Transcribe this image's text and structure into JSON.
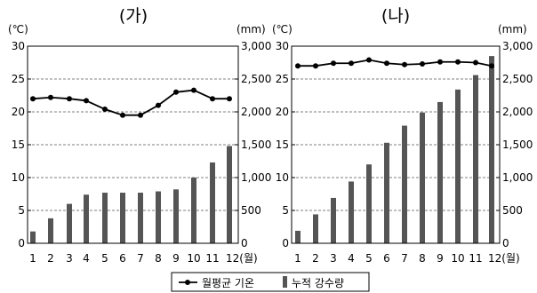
{
  "chart_data": [
    {
      "type": "bar+line",
      "title": "(가)",
      "left_axis_unit": "(℃)",
      "right_axis_unit": "(mm)",
      "categories": [
        "1",
        "2",
        "3",
        "4",
        "5",
        "6",
        "7",
        "8",
        "9",
        "10",
        "11",
        "12(월)"
      ],
      "left_ylim": [
        0,
        30
      ],
      "left_ticks": [
        "0",
        "5",
        "10",
        "15",
        "20",
        "25",
        "30"
      ],
      "right_ylim": [
        0,
        3000
      ],
      "right_ticks": [
        "0",
        "500",
        "1,000",
        "1,500",
        "2,000",
        "2,500",
        "3,000"
      ],
      "grid": true,
      "series": [
        {
          "name": "월평균 기온",
          "type": "line",
          "axis": "left",
          "values": [
            22.0,
            22.2,
            22.0,
            21.7,
            20.4,
            19.5,
            19.5,
            21.0,
            23.0,
            23.3,
            22.0,
            22.0
          ]
        },
        {
          "name": "누적 강수량",
          "type": "bar",
          "axis": "right",
          "values": [
            180,
            380,
            600,
            740,
            770,
            770,
            770,
            790,
            820,
            1000,
            1230,
            1480
          ]
        }
      ]
    },
    {
      "type": "bar+line",
      "title": "(나)",
      "left_axis_unit": "(℃)",
      "right_axis_unit": "(mm)",
      "categories": [
        "1",
        "2",
        "3",
        "4",
        "5",
        "6",
        "7",
        "8",
        "9",
        "10",
        "11",
        "12(월)"
      ],
      "left_ylim": [
        0,
        30
      ],
      "left_ticks": [
        "0",
        "5",
        "10",
        "15",
        "20",
        "25",
        "30"
      ],
      "right_ylim": [
        0,
        3000
      ],
      "right_ticks": [
        "0",
        "500",
        "1,000",
        "1,500",
        "2,000",
        "2,500",
        "3,000"
      ],
      "grid": true,
      "series": [
        {
          "name": "월평균 기온",
          "type": "line",
          "axis": "left",
          "values": [
            27.0,
            27.0,
            27.4,
            27.4,
            27.9,
            27.4,
            27.2,
            27.3,
            27.6,
            27.6,
            27.5,
            27.0
          ]
        },
        {
          "name": "누적 강수량",
          "type": "bar",
          "axis": "right",
          "values": [
            190,
            440,
            690,
            940,
            1200,
            1530,
            1790,
            1990,
            2150,
            2340,
            2560,
            2850
          ]
        }
      ]
    }
  ],
  "legend": {
    "line_label": "월평균 기온",
    "bar_label": "누적 강수량",
    "line_color": "#000000",
    "bar_color": "#555555"
  }
}
